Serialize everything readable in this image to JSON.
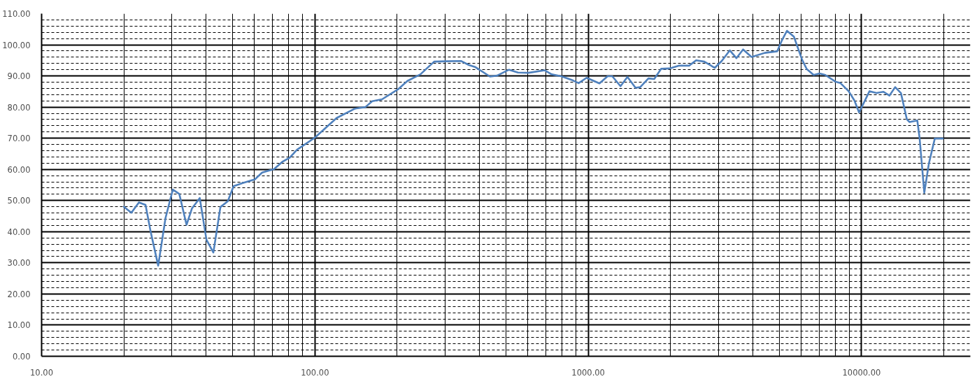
{
  "chart_data": {
    "type": "line",
    "log": "x",
    "grid": true,
    "x": [
      20,
      21.3,
      22.7,
      24.0,
      25.1,
      26.7,
      28.4,
      30.2,
      31.9,
      33.9,
      35.5,
      37.9,
      40.1,
      42.5,
      45.1,
      48.0,
      50.4,
      54.4,
      60.3,
      64.1,
      70.9,
      76.2,
      80.9,
      86.0,
      100,
      120,
      140,
      153,
      162,
      176,
      202,
      218,
      243,
      273,
      301,
      342,
      366,
      385,
      437,
      464,
      513,
      553,
      604,
      693,
      735,
      795,
      877,
      922,
      986,
      1099,
      1177,
      1224,
      1312,
      1391,
      1489,
      1549,
      1660,
      1743,
      1849,
      1981,
      2142,
      2339,
      2481,
      2657,
      2903,
      3078,
      3296,
      3483,
      3686,
      3956,
      4424,
      4910,
      5097,
      5332,
      5655,
      6057,
      6300,
      6680,
      7015,
      7367,
      8049,
      8369,
      8965,
      9415,
      9789,
      10180,
      10690,
      11340,
      12030,
      12640,
      13270,
      13930,
      14640,
      14980,
      15990,
      16300,
      16960,
      17630,
      18530,
      19830
    ],
    "series": [
      {
        "color": "#4f81bd",
        "values": [
          48.0,
          46.1,
          49.4,
          48.6,
          39.7,
          29.1,
          44.4,
          53.5,
          52.1,
          42.2,
          47.5,
          50.8,
          37.4,
          33.3,
          47.9,
          49.8,
          54.6,
          55.6,
          56.8,
          59.0,
          60.1,
          62.5,
          63.8,
          66.3,
          70.2,
          76.5,
          79.5,
          80.0,
          81.9,
          82.5,
          85.8,
          88.4,
          90.5,
          94.6,
          94.7,
          94.8,
          93.5,
          92.9,
          89.8,
          90.1,
          92.0,
          91.1,
          91.0,
          91.8,
          90.5,
          89.9,
          88.6,
          87.7,
          89.4,
          87.6,
          89.9,
          89.9,
          86.7,
          89.7,
          86.2,
          86.4,
          89.2,
          89.0,
          92.3,
          92.4,
          93.3,
          93.3,
          95.0,
          94.6,
          92.6,
          94.8,
          98.2,
          95.7,
          98.5,
          96.1,
          97.4,
          97.9,
          101.2,
          104.5,
          102.6,
          95.2,
          92.2,
          90.3,
          90.8,
          90.3,
          88.1,
          87.7,
          85.1,
          82.1,
          78.3,
          81.3,
          85.1,
          84.5,
          84.9,
          83.7,
          86.4,
          84.5,
          76.1,
          75.2,
          75.7,
          70.1,
          52.5,
          61.9,
          69.9,
          69.9
        ]
      }
    ],
    "xlim": [
      10,
      25000
    ],
    "ylim": [
      0,
      110
    ],
    "xticks": [
      {
        "value": 10,
        "label": "10.00"
      },
      {
        "value": 20,
        "label": null
      },
      {
        "value": 30,
        "label": null
      },
      {
        "value": 40,
        "label": null
      },
      {
        "value": 50,
        "label": null
      },
      {
        "value": 60,
        "label": null
      },
      {
        "value": 70,
        "label": null
      },
      {
        "value": 80,
        "label": null
      },
      {
        "value": 90,
        "label": null
      },
      {
        "value": 100,
        "label": "100.00"
      },
      {
        "value": 200,
        "label": null
      },
      {
        "value": 300,
        "label": null
      },
      {
        "value": 400,
        "label": null
      },
      {
        "value": 500,
        "label": null
      },
      {
        "value": 600,
        "label": null
      },
      {
        "value": 700,
        "label": null
      },
      {
        "value": 800,
        "label": null
      },
      {
        "value": 900,
        "label": null
      },
      {
        "value": 1000,
        "label": "1000.00"
      },
      {
        "value": 2000,
        "label": null
      },
      {
        "value": 3000,
        "label": null
      },
      {
        "value": 4000,
        "label": null
      },
      {
        "value": 5000,
        "label": null
      },
      {
        "value": 6000,
        "label": null
      },
      {
        "value": 7000,
        "label": null
      },
      {
        "value": 8000,
        "label": null
      },
      {
        "value": 9000,
        "label": null
      },
      {
        "value": 10000,
        "label": "10000.00"
      },
      {
        "value": 20000,
        "label": null
      }
    ],
    "yticks": [
      {
        "value": 0,
        "label": "0.00"
      },
      {
        "value": 2,
        "label": null
      },
      {
        "value": 4,
        "label": null
      },
      {
        "value": 6,
        "label": null
      },
      {
        "value": 8,
        "label": null
      },
      {
        "value": 10,
        "label": "10.00"
      },
      {
        "value": 12,
        "label": null
      },
      {
        "value": 14,
        "label": null
      },
      {
        "value": 16,
        "label": null
      },
      {
        "value": 18,
        "label": null
      },
      {
        "value": 20,
        "label": "20.00"
      },
      {
        "value": 22,
        "label": null
      },
      {
        "value": 24,
        "label": null
      },
      {
        "value": 26,
        "label": null
      },
      {
        "value": 28,
        "label": null
      },
      {
        "value": 30,
        "label": "30.00"
      },
      {
        "value": 32,
        "label": null
      },
      {
        "value": 34,
        "label": null
      },
      {
        "value": 36,
        "label": null
      },
      {
        "value": 38,
        "label": null
      },
      {
        "value": 40,
        "label": "40.00"
      },
      {
        "value": 42,
        "label": null
      },
      {
        "value": 44,
        "label": null
      },
      {
        "value": 46,
        "label": null
      },
      {
        "value": 48,
        "label": null
      },
      {
        "value": 50,
        "label": "50.00"
      },
      {
        "value": 52,
        "label": null
      },
      {
        "value": 54,
        "label": null
      },
      {
        "value": 56,
        "label": null
      },
      {
        "value": 58,
        "label": null
      },
      {
        "value": 60,
        "label": "60.00"
      },
      {
        "value": 62,
        "label": null
      },
      {
        "value": 64,
        "label": null
      },
      {
        "value": 66,
        "label": null
      },
      {
        "value": 68,
        "label": null
      },
      {
        "value": 70,
        "label": "70.00"
      },
      {
        "value": 72,
        "label": null
      },
      {
        "value": 74,
        "label": null
      },
      {
        "value": 76,
        "label": null
      },
      {
        "value": 78,
        "label": null
      },
      {
        "value": 80,
        "label": "80.00"
      },
      {
        "value": 82,
        "label": null
      },
      {
        "value": 84,
        "label": null
      },
      {
        "value": 86,
        "label": null
      },
      {
        "value": 88,
        "label": null
      },
      {
        "value": 90,
        "label": "90.00"
      },
      {
        "value": 92,
        "label": null
      },
      {
        "value": 94,
        "label": null
      },
      {
        "value": 96,
        "label": null
      },
      {
        "value": 98,
        "label": null
      },
      {
        "value": 100,
        "label": "100.00"
      },
      {
        "value": 102,
        "label": null
      },
      {
        "value": 104,
        "label": null
      },
      {
        "value": 106,
        "label": null
      },
      {
        "value": 108,
        "label": null
      },
      {
        "value": 110,
        "label": "110.00"
      }
    ]
  }
}
